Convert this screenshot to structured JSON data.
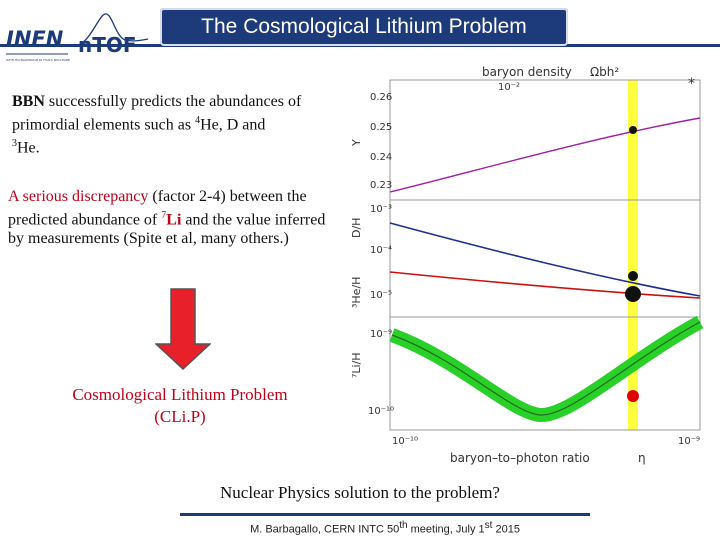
{
  "header": {
    "title": "The Cosmological Lithium Problem",
    "logo_left": "INFN",
    "logo_left_sub": "ISTITUTO NAZIONALE DI FISICA NUCLEARE",
    "logo_right": "nTOF"
  },
  "body": {
    "p1_bold": "BBN",
    "p1_a": " successfully predicts the abundances of primordial  elements such as ",
    "p1_sup1": "4",
    "p1_b": "He, D and ",
    "p1_sup2": "3",
    "p1_c": "He.",
    "p2_red": "A serious discrepancy",
    "p2_a": "  (factor  2-4) between the predicted abundance of  ",
    "p2_sup": "7",
    "p2_li": "Li",
    "p2_b": " and the value inferred by measurements (Spite et al, many others.)",
    "clip_line1": "Cosmological  Lithium  Problem",
    "clip_line2": "(CLi.P)",
    "question": "Nuclear Physics solution to the problem?",
    "footer_a": "M. Barbagallo, CERN INTC 50",
    "footer_sup1": "th",
    "footer_b": " meeting, July 1",
    "footer_sup2": "st",
    "footer_c": " 2015"
  },
  "chart_data": {
    "type": "line",
    "top_axis_label": "baryon density",
    "top_axis_symbol": "Ωbh²",
    "top_tick": "10⁻²",
    "bottom_axis_label": "baryon–to–photon ratio",
    "bottom_axis_symbol": "η",
    "x_ticks": [
      "10⁻¹⁰",
      "10⁻⁹"
    ],
    "marker": "*",
    "panels": [
      {
        "ylabel": "Y",
        "yticks": [
          "0.26",
          "0.25",
          "0.24",
          "0.23"
        ]
      },
      {
        "ylabel": "D/H",
        "yticks": [
          "10⁻³",
          "10⁻⁴"
        ]
      },
      {
        "ylabel": "³He/H",
        "yticks": [
          "10⁻⁵"
        ]
      },
      {
        "ylabel": "⁷Li/H",
        "yticks": [
          "10⁻⁹",
          "10⁻¹⁰"
        ]
      }
    ],
    "colors": {
      "Y": "#a020a0",
      "DH": "#1f2f8f",
      "HeH": "#cc1010",
      "Li": "#28d028",
      "band": "#ffff40",
      "point_li": "#e00000"
    }
  }
}
